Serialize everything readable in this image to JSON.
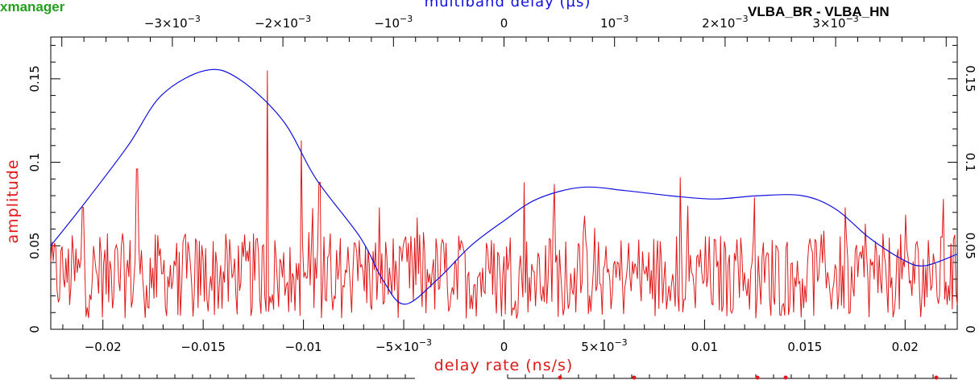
{
  "app": {
    "title": "xmanager"
  },
  "baseline": "VLBA_BR - VLBA_HN",
  "chart_data": {
    "type": "line",
    "top_axis": {
      "label": "multiband delay (µs)",
      "range": [
        -0.0041,
        0.0041
      ],
      "ticks": [
        {
          "value": -0.003,
          "mant": "−3×10",
          "exp": "−3"
        },
        {
          "value": -0.002,
          "mant": "−2×10",
          "exp": "−3"
        },
        {
          "value": -0.001,
          "mant": "−10",
          "exp": "−3"
        },
        {
          "value": 0,
          "mant": "0",
          "exp": ""
        },
        {
          "value": 0.001,
          "mant": "10",
          "exp": "−3"
        },
        {
          "value": 0.002,
          "mant": "2×10",
          "exp": "−3"
        },
        {
          "value": 0.003,
          "mant": "3×10",
          "exp": "−3"
        }
      ]
    },
    "bottom_axis": {
      "label": "delay rate (ns/s)",
      "range": [
        -0.0226,
        0.0226
      ],
      "ticks": [
        {
          "value": -0.02,
          "mant": "−0.02",
          "exp": ""
        },
        {
          "value": -0.015,
          "mant": "−0.015",
          "exp": ""
        },
        {
          "value": -0.01,
          "mant": "−0.01",
          "exp": ""
        },
        {
          "value": -0.005,
          "mant": "−5×10",
          "exp": "−3"
        },
        {
          "value": 0,
          "mant": "0",
          "exp": ""
        },
        {
          "value": 0.005,
          "mant": "5×10",
          "exp": "−3"
        },
        {
          "value": 0.01,
          "mant": "0.01",
          "exp": ""
        },
        {
          "value": 0.015,
          "mant": "0.015",
          "exp": ""
        },
        {
          "value": 0.02,
          "mant": "0.02",
          "exp": ""
        }
      ]
    },
    "y_axis": {
      "label": "amplitude",
      "range": [
        0,
        0.175
      ],
      "ticks": [
        {
          "value": 0,
          "label": "0"
        },
        {
          "value": 0.05,
          "label": "0.05"
        },
        {
          "value": 0.1,
          "label": "0.1"
        },
        {
          "value": 0.15,
          "label": "0.15"
        }
      ]
    },
    "series": [
      {
        "color": "#1010e0",
        "x": [
          -0.0041,
          -0.0038,
          -0.0034,
          -0.0031,
          -0.0027,
          -0.0024,
          -0.002,
          -0.0017,
          -0.0013,
          -0.0011,
          -0.0009,
          -0.0006,
          -0.0003,
          0,
          0.0003,
          0.0007,
          0.0011,
          0.0015,
          0.0019,
          0.0023,
          0.0027,
          0.003,
          0.0033,
          0.0036,
          0.0038,
          0.0041
        ],
        "y": [
          0.05,
          0.075,
          0.11,
          0.14,
          0.155,
          0.15,
          0.125,
          0.09,
          0.055,
          0.03,
          0.015,
          0.03,
          0.05,
          0.065,
          0.078,
          0.085,
          0.083,
          0.08,
          0.078,
          0.08,
          0.08,
          0.072,
          0.055,
          0.042,
          0.038,
          0.045
        ]
      },
      {
        "color": "#e01818",
        "x_range": [
          -0.0226,
          0.0226
        ],
        "peaks": [
          {
            "x": -0.021,
            "y": 0.073
          },
          {
            "x": -0.0183,
            "y": 0.096
          },
          {
            "x": -0.0118,
            "y": 0.155
          },
          {
            "x": -0.0101,
            "y": 0.113
          },
          {
            "x": -0.0092,
            "y": 0.088
          },
          {
            "x": -0.0062,
            "y": 0.073
          },
          {
            "x": 0.001,
            "y": 0.088
          },
          {
            "x": 0.0025,
            "y": 0.087
          },
          {
            "x": 0.0088,
            "y": 0.091
          },
          {
            "x": 0.0125,
            "y": 0.079
          },
          {
            "x": 0.017,
            "y": 0.073
          },
          {
            "x": 0.0219,
            "y": 0.078
          }
        ],
        "baseline_level": 0.032
      }
    ],
    "grid": false
  }
}
